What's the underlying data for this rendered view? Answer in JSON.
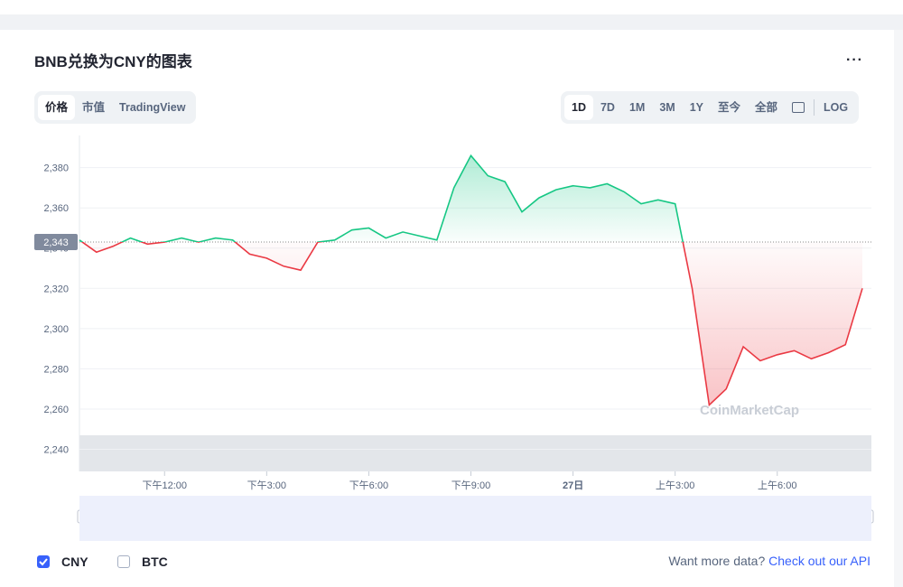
{
  "header": {
    "title": "BNB兑换为CNY的图表"
  },
  "tabs": [
    "价格",
    "市值",
    "TradingView"
  ],
  "ranges": [
    "1D",
    "7D",
    "1M",
    "3M",
    "1Y",
    "至今",
    "全部",
    "LOG"
  ],
  "chart_data": {
    "type": "line",
    "watermark": "CoinMarketCap",
    "categories": [
      null,
      null,
      null,
      null,
      null,
      "下午12:00",
      null,
      null,
      null,
      null,
      null,
      "下午3:00",
      null,
      null,
      null,
      null,
      null,
      "下午6:00",
      null,
      null,
      null,
      null,
      null,
      "下午9:00",
      null,
      null,
      null,
      null,
      null,
      "27日",
      null,
      null,
      null,
      null,
      null,
      "上午3:00",
      null,
      null,
      null,
      null,
      null,
      "上午6:00",
      null,
      null,
      null,
      null,
      null
    ],
    "series": [
      {
        "name": "CNY",
        "up_color": "#16c784",
        "down_color": "#ea3943",
        "values": [
          2344,
          2338,
          2341,
          2345,
          2342,
          2343,
          2345,
          2343,
          2345,
          2344,
          2337,
          2335,
          2331,
          2329,
          2343,
          2344,
          2349,
          2350,
          2345,
          2348,
          2346,
          2344,
          2370,
          2386,
          2376,
          2373,
          2358,
          2365,
          2369,
          2371,
          2370,
          2372,
          2368,
          2362,
          2364,
          2362,
          2320,
          2262,
          2270,
          2291,
          2284,
          2287,
          2289,
          2285,
          2288,
          2292,
          2320
        ]
      }
    ],
    "reference": {
      "value": 2343,
      "label": "2,343"
    },
    "ylim": [
      2229,
      2396
    ],
    "yticks": [
      {
        "value": 2240,
        "label": "2,240"
      },
      {
        "value": 2260,
        "label": "2,260"
      },
      {
        "value": 2280,
        "label": "2,280"
      },
      {
        "value": 2300,
        "label": "2,300"
      },
      {
        "value": 2320,
        "label": "2,320"
      },
      {
        "value": 2340,
        "label": "2,340"
      },
      {
        "value": 2360,
        "label": "2,360"
      },
      {
        "value": 2380,
        "label": "2,380"
      }
    ],
    "grid": true
  },
  "legend": [
    {
      "label": "CNY",
      "checked": true
    },
    {
      "label": "BTC",
      "checked": false
    }
  ],
  "footer": {
    "prompt": "Want more data?",
    "link": "Check out our API"
  }
}
